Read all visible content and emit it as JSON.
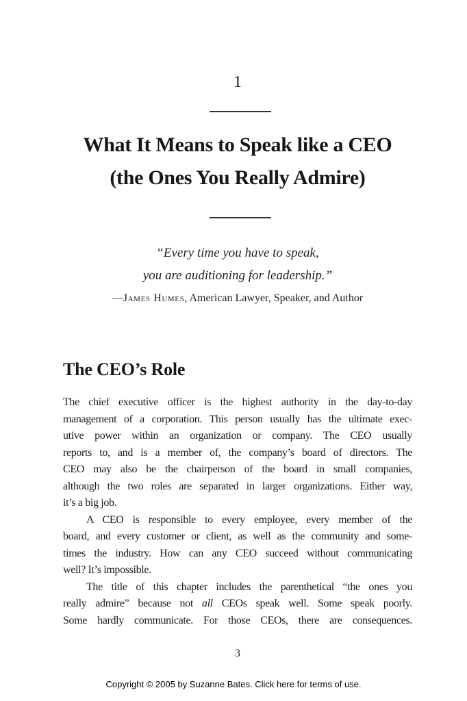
{
  "page": {
    "chapter_number": "1",
    "title_line1": "What It Means to Speak like a CEO",
    "title_line2": "(the Ones You Really Admire)",
    "quote": {
      "line1": "“Every time you have to speak,",
      "line2": "you are auditioning for leadership.”",
      "attribution_dash": "—",
      "attribution_name": "James Humes",
      "attribution_rest": ", American Lawyer, Speaker, and Author"
    },
    "section": {
      "heading": "The CEO’s Role",
      "paragraphs": [
        {
          "indent": false,
          "justify_last": false,
          "lines": [
            "The chief executive officer is the highest authority in the day-to-day",
            "management of a corporation. This person usually has the ultimate exec-",
            "utive power within an organization or company. The CEO usually",
            "reports to, and is a member of, the company’s board of directors. The",
            "CEO may also be the chairperson of the board in small companies,",
            "although the two roles are separated in larger organizations. Either way,",
            "it’s a big job."
          ]
        },
        {
          "indent": true,
          "justify_last": false,
          "lines": [
            "A CEO is responsible to every employee, every member of the",
            "board, and every customer or client, as well as the community and some-",
            "times the industry. How can any CEO succeed without communicating",
            "well? It’s impossible."
          ]
        },
        {
          "indent": true,
          "justify_last": true,
          "lines": [
            "The title of this chapter includes the parenthetical “the ones you",
            "really admire” because not *all* CEOs speak well. Some speak poorly.",
            "Some hardly communicate. For those CEOs, there are consequences."
          ]
        }
      ]
    },
    "page_number": "3",
    "footer": {
      "pre": "Copyright © 2005 by Suzanne Bates. ",
      "link": "Click here",
      "post": " for terms of use."
    }
  }
}
